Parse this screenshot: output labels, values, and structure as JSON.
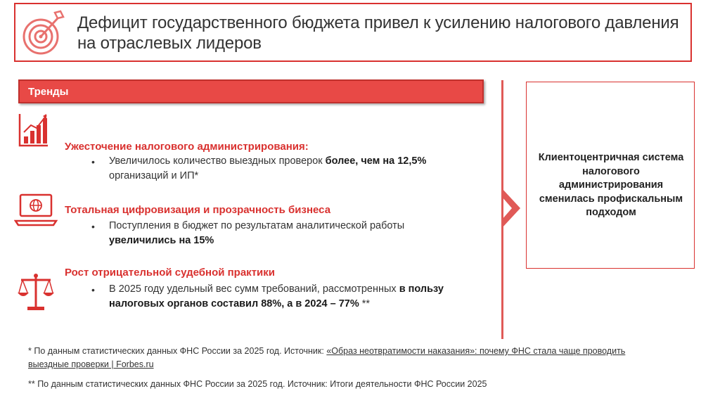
{
  "header": {
    "title": "Дефицит государственного бюджета привел к усилению налогового    давления на отраслевых лидеров"
  },
  "trends": {
    "label": "Тренды",
    "items": [
      {
        "icon": "bar-chart-icon",
        "title": "Ужесточение налогового администрирования:",
        "bullet": "•",
        "text_plain": "Увеличилось количество выездных  проверок ",
        "text_bold": "более, чем на 12,5%",
        "text_tail": "организаций и ИП*"
      },
      {
        "icon": "laptop-globe-icon",
        "title": "Тотальная цифровизация и прозрачность бизнеса",
        "bullet": "•",
        "text_plain": "Поступления в бюджет по результатам аналитической работы",
        "text_bold": "увеличились на 15%"
      },
      {
        "icon": "scales-icon",
        "title": "Рост отрицательной судебной практики",
        "bullet": "•",
        "text_plain": "В 2025 году удельный вес сумм требований, рассмотренных ",
        "text_bold": "в пользу налоговых органов составил 88%, а в 2024 – 77%",
        "text_tail": " **"
      }
    ]
  },
  "conclusion": {
    "text": "Клиентоцентричная система налогового администрирования сменилась профискальным подходом"
  },
  "footnotes": {
    "f1_prefix": "* По данным  статистических данных ФНС России за 2025 год. Источник: ",
    "f1_link": "«Образ неотвратимости наказания»: почему ФНС стала чаще проводить выездные проверки | Forbes.ru",
    "f2": "** По данным  статистических данных ФНС России за 2025 год. Источник: Итоги деятельности ФНС России 2025"
  },
  "colors": {
    "accent": "#d9312f",
    "bar": "#e84946"
  }
}
